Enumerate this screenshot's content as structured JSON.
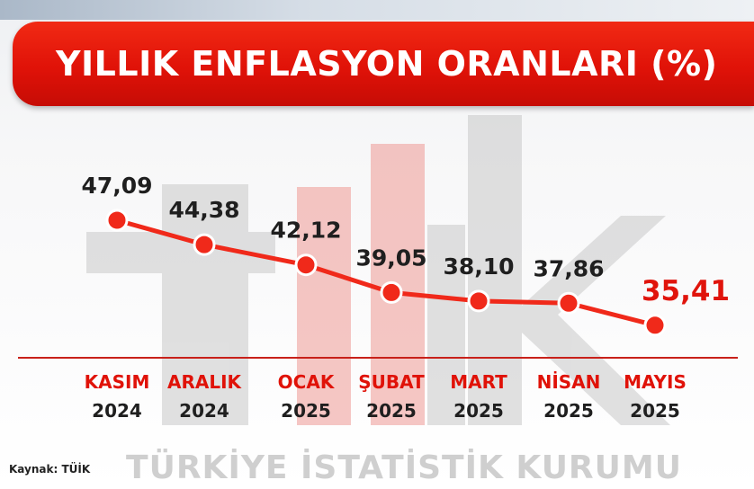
{
  "title": "YILLIK ENFLASYON ORANLARI (%)",
  "source": "Kaynak: TÜİK",
  "watermark": {
    "logo_text": "tüik",
    "footer": "TÜRKİYE İSTATİSTİK KURUMU"
  },
  "colors": {
    "accent": "#e01208",
    "line": "#f0291a",
    "text_dark": "#1f1f1f",
    "watermark": "#d4d4d4"
  },
  "chart_data": {
    "type": "line",
    "title": "YILLIK ENFLASYON ORANLARI (%)",
    "categories": [
      {
        "line1": "KASIM",
        "line2": "2024"
      },
      {
        "line1": "ARALIK",
        "line2": "2024"
      },
      {
        "line1": "OCAK",
        "line2": "2025"
      },
      {
        "line1": "ŞUBAT",
        "line2": "2025"
      },
      {
        "line1": "MART",
        "line2": "2025"
      },
      {
        "line1": "NİSAN",
        "line2": "2025"
      },
      {
        "line1": "MAYIS",
        "line2": "2025"
      }
    ],
    "values": [
      47.09,
      44.38,
      42.12,
      39.05,
      38.1,
      37.86,
      35.41
    ],
    "value_labels": [
      "47,09",
      "44,38",
      "42,12",
      "39,05",
      "38,10",
      "37,86",
      "35,41"
    ],
    "highlight_index": 6,
    "grid": false,
    "legend": "none"
  }
}
